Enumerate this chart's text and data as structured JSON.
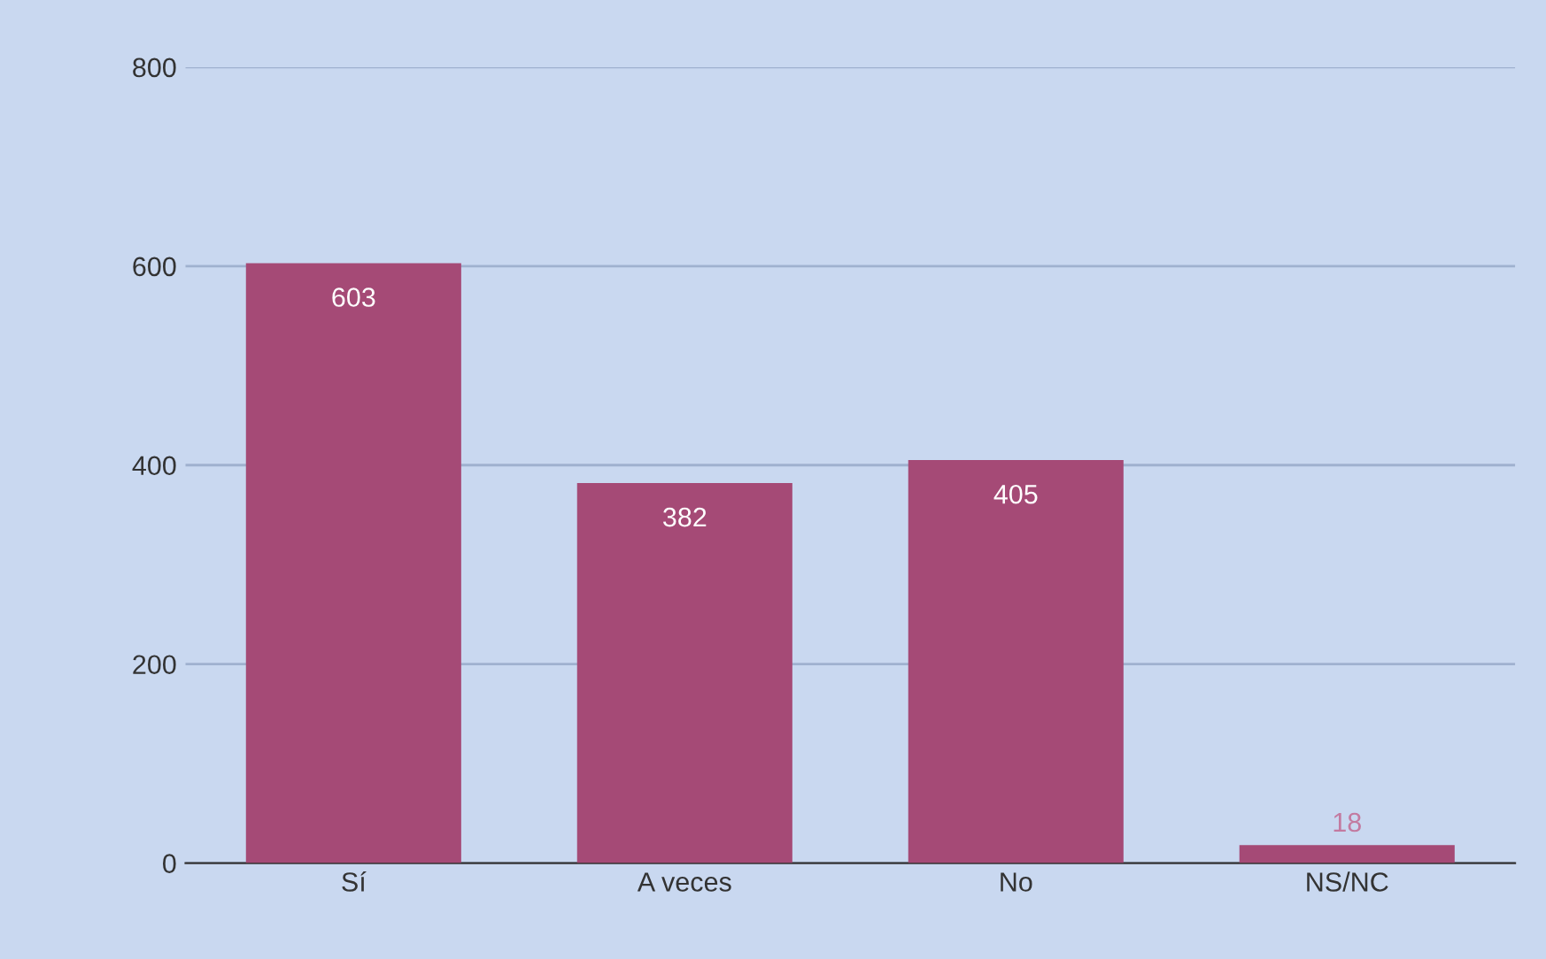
{
  "chart_data": {
    "type": "bar",
    "categories": [
      "Sí",
      "A veces",
      "No",
      "NS/NC"
    ],
    "values": [
      603,
      382,
      405,
      18
    ],
    "color": "#a54a76",
    "ylim": [
      0,
      800
    ],
    "yticks": [
      0,
      200,
      400,
      600,
      800
    ],
    "grid": "y",
    "data_labels": true
  }
}
